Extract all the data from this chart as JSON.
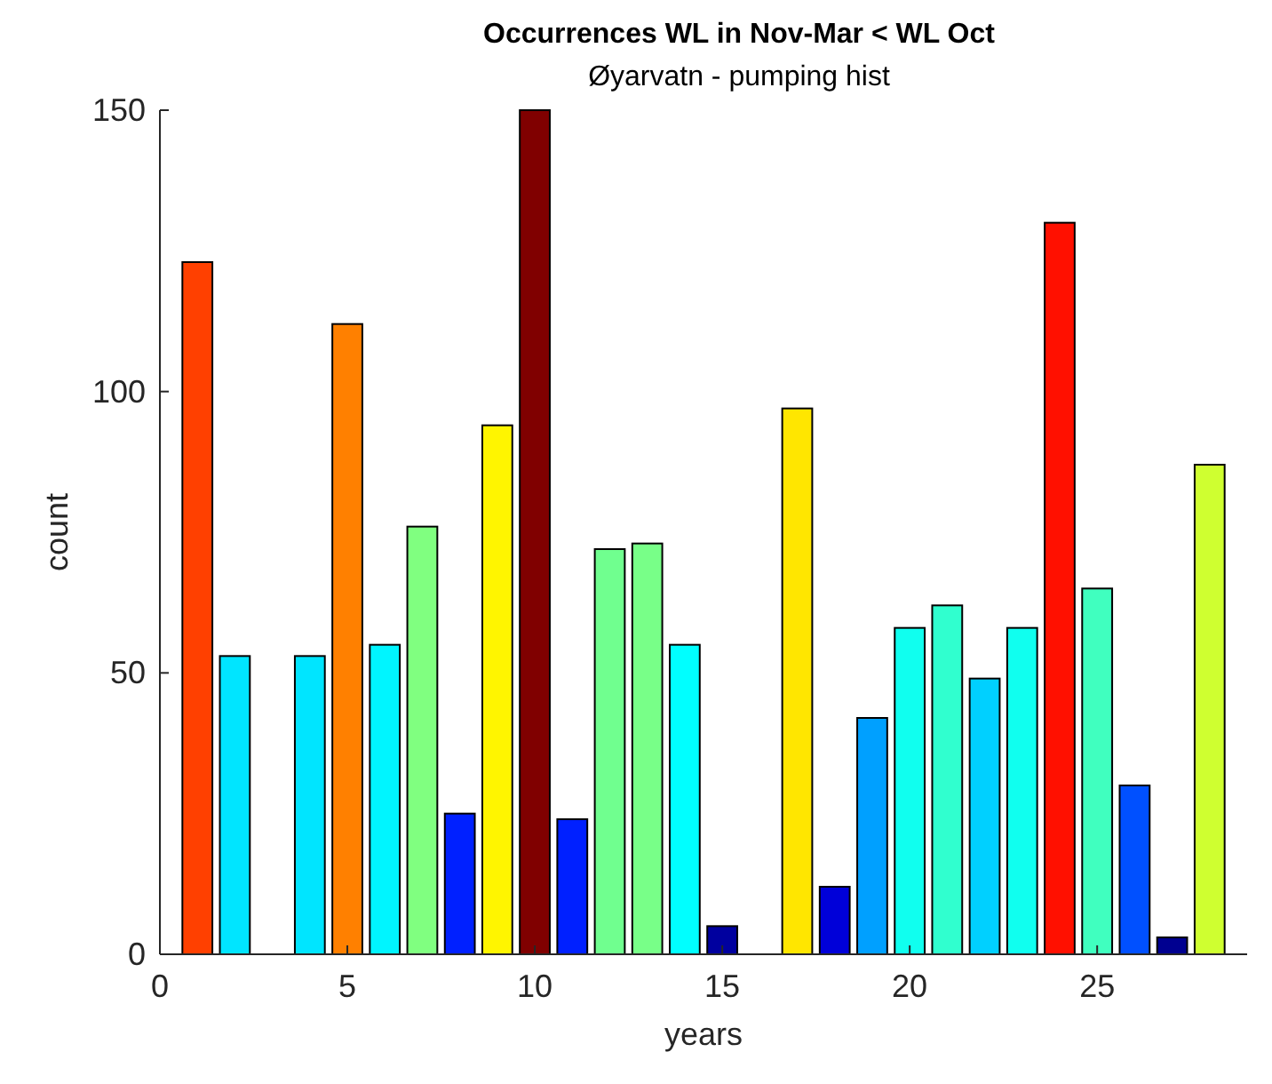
{
  "chart_data": {
    "type": "bar",
    "title": "Occurrences WL in Nov-Mar < WL Oct",
    "subtitle": "Øyarvatn - pumping hist",
    "xlabel": "years",
    "ylabel": "count",
    "x": [
      1,
      2,
      4,
      5,
      6,
      7,
      8,
      9,
      10,
      11,
      12,
      13,
      14,
      15,
      17,
      18,
      19,
      20,
      21,
      22,
      23,
      24,
      25,
      26,
      27,
      28
    ],
    "values": [
      123,
      53,
      53,
      112,
      55,
      76,
      25,
      94,
      150,
      24,
      72,
      73,
      55,
      5,
      97,
      12,
      42,
      58,
      62,
      49,
      58,
      130,
      65,
      30,
      3,
      87
    ],
    "colors": [
      "#ff4000",
      "#00e5ff",
      "#00e5ff",
      "#ff8000",
      "#00f5ff",
      "#80ff80",
      "#0020ff",
      "#fff500",
      "#800000",
      "#0020ff",
      "#70ff8f",
      "#78ff88",
      "#00ffff",
      "#00009f",
      "#ffe600",
      "#0000d9",
      "#00a0ff",
      "#10ffef",
      "#30ffcf",
      "#00d0ff",
      "#10ffef",
      "#ff1000",
      "#40ffbf",
      "#0050ff",
      "#000090",
      "#cfff30"
    ],
    "xlim": [
      0,
      29
    ],
    "ylim": [
      0,
      150
    ],
    "xticks": [
      0,
      5,
      10,
      15,
      20,
      25
    ],
    "yticks": [
      0,
      50,
      100,
      150
    ],
    "grid": false
  }
}
